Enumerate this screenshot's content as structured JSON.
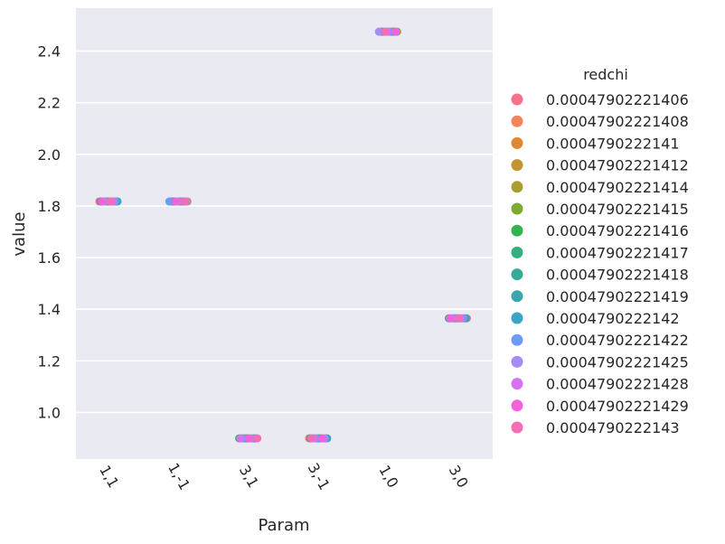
{
  "chart_data": {
    "type": "scatter",
    "subtype": "strip",
    "xlabel": "Param",
    "ylabel": "value",
    "categories": [
      "1,1",
      "1,-1",
      "3,1",
      "3,-1",
      "1,0",
      "3,0"
    ],
    "category_values": [
      1.8175,
      1.8175,
      0.9,
      0.9,
      2.475,
      1.365
    ],
    "y_ticks": [
      "1.0",
      "1.2",
      "1.4",
      "1.6",
      "1.8",
      "2.0",
      "2.2",
      "2.4"
    ],
    "ylim": [
      0.82,
      2.54
    ],
    "grid": true,
    "legend": {
      "title": "redchi",
      "placement": "right",
      "entries": [
        {
          "label": "0.00047902221406",
          "color": "#f77189"
        },
        {
          "label": "0.00047902221408",
          "color": "#f3845c"
        },
        {
          "label": "0.0004790222141",
          "color": "#dc8932"
        },
        {
          "label": "0.00047902221412",
          "color": "#c39532"
        },
        {
          "label": "0.00047902221414",
          "color": "#a89e32"
        },
        {
          "label": "0.00047902221415",
          "color": "#7eaa31"
        },
        {
          "label": "0.00047902221416",
          "color": "#33b24f"
        },
        {
          "label": "0.00047902221417",
          "color": "#35ae7f"
        },
        {
          "label": "0.00047902221418",
          "color": "#36aa9a"
        },
        {
          "label": "0.00047902221419",
          "color": "#38a7af"
        },
        {
          "label": "0.0004790222142",
          "color": "#3ba3c6"
        },
        {
          "label": "0.00047902221422",
          "color": "#6e9bf4"
        },
        {
          "label": "0.00047902221425",
          "color": "#a48cf4"
        },
        {
          "label": "0.00047902221428",
          "color": "#d673f4"
        },
        {
          "label": "0.00047902221429",
          "color": "#f461dd"
        },
        {
          "label": "0.0004790222143",
          "color": "#f56cb7"
        }
      ]
    }
  }
}
